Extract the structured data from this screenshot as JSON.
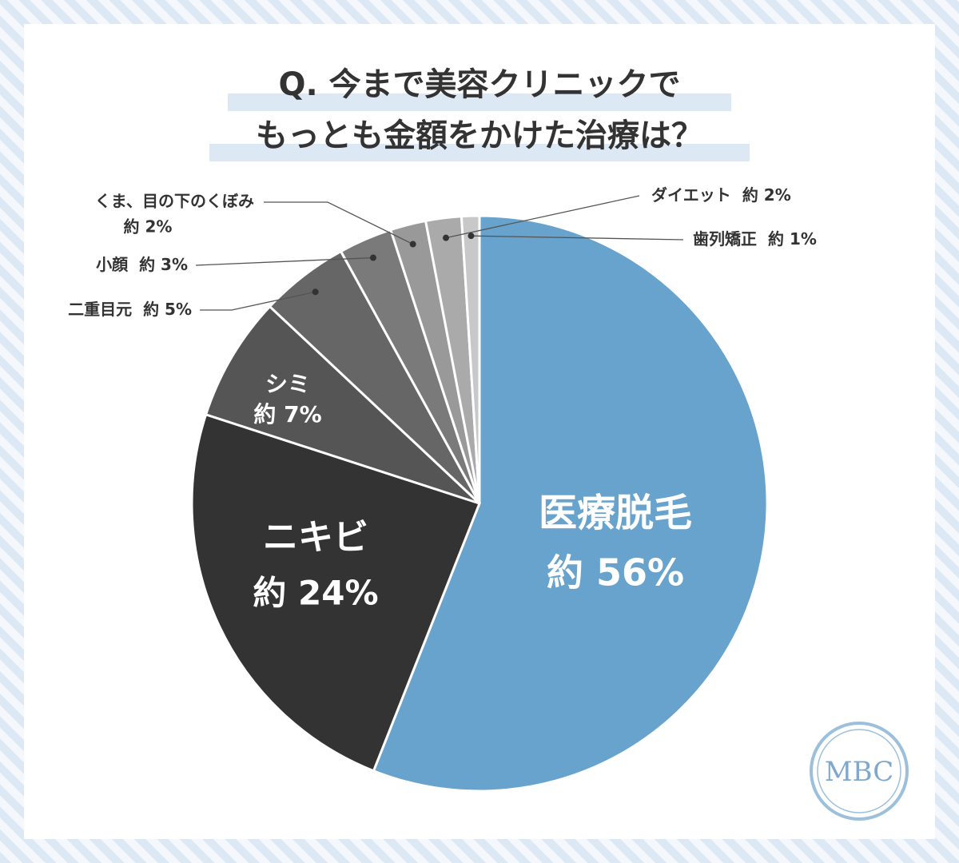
{
  "chart_data": {
    "type": "pie",
    "title": [
      "Q. 今まで美容クリニックで",
      "もっとも金額をかけた治療は？"
    ],
    "categories": [
      "医療脱毛",
      "ニキビ",
      "シミ",
      "二重目元",
      "小顔",
      "くま、目の下のくぼみ",
      "ダイエット",
      "歯列矯正"
    ],
    "values": [
      56,
      24,
      7,
      5,
      3,
      2,
      2,
      1
    ],
    "value_labels": [
      "約 56%",
      "約 24%",
      "約 7%",
      "約 5%",
      "約 3%",
      "約 2%",
      "約 2%",
      "約 1%"
    ],
    "colors": [
      "#67a3cc",
      "#333333",
      "#555555",
      "#666666",
      "#7a7a7a",
      "#999999",
      "#aaaaaa",
      "#c8c8c8"
    ]
  },
  "logo": "MBC"
}
